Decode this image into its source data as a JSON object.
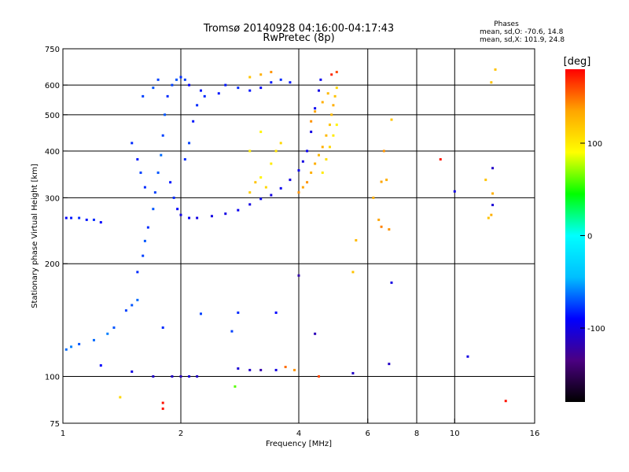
{
  "chart_data": {
    "type": "scatter",
    "title": "Tromsø 20140928 04:16:00-04:17:43",
    "subtitle": "RwPretec (8p)",
    "xlabel": "Frequency [MHz]",
    "ylabel": "Stationary phase Virtual Height [km]",
    "x_scale": "log",
    "y_scale": "log",
    "xlim": [
      1,
      16
    ],
    "ylim": [
      75,
      750
    ],
    "x_ticks": [
      1,
      2,
      4,
      6,
      8,
      10,
      16
    ],
    "x_tick_labels": [
      "1",
      "2",
      "4",
      "6",
      "8",
      "10",
      "16"
    ],
    "y_ticks": [
      75,
      100,
      200,
      300,
      400,
      500,
      600,
      750
    ],
    "y_tick_labels": [
      "75",
      "100",
      "200",
      "300",
      "400",
      "500",
      "600",
      "750"
    ],
    "grid": true,
    "phase_box": {
      "title": "Phases",
      "line_o": "mean, sd,O: -70.6, 14.8",
      "line_x": "mean, sd,X: 101.9, 24.8"
    },
    "colorbar": {
      "label": "[deg]",
      "min": -180,
      "max": 180,
      "ticks": [
        100,
        0,
        -100
      ],
      "tick_labels": [
        "100",
        "0",
        "-100"
      ],
      "colors": [
        "#000000",
        "#4b0082",
        "#0000ff",
        "#00bfff",
        "#00ffff",
        "#00ff00",
        "#ffff00",
        "#ffa500",
        "#ff0000"
      ]
    },
    "series": [
      {
        "points": [
          [
            1.02,
            265,
            -90
          ],
          [
            1.05,
            265,
            -85
          ],
          [
            1.1,
            265,
            -80
          ],
          [
            1.15,
            262,
            -85
          ],
          [
            1.2,
            262,
            -80
          ],
          [
            1.25,
            258,
            -90
          ],
          [
            1.02,
            118,
            -65
          ],
          [
            1.05,
            120,
            -60
          ],
          [
            1.1,
            122,
            -70
          ],
          [
            1.2,
            125,
            -65
          ],
          [
            1.3,
            130,
            -60
          ],
          [
            1.35,
            135,
            -70
          ],
          [
            1.45,
            150,
            -75
          ],
          [
            1.5,
            155,
            -70
          ],
          [
            1.55,
            160,
            -65
          ],
          [
            1.55,
            190,
            -80
          ],
          [
            1.6,
            210,
            -75
          ],
          [
            1.62,
            230,
            -70
          ],
          [
            1.65,
            250,
            -80
          ],
          [
            1.7,
            280,
            -70
          ],
          [
            1.72,
            310,
            -75
          ],
          [
            1.75,
            350,
            -70
          ],
          [
            1.78,
            390,
            -65
          ],
          [
            1.8,
            440,
            -75
          ],
          [
            1.82,
            500,
            -70
          ],
          [
            1.85,
            560,
            -80
          ],
          [
            1.9,
            600,
            -75
          ],
          [
            1.95,
            620,
            -70
          ],
          [
            2.0,
            630,
            -80
          ],
          [
            2.05,
            620,
            -75
          ],
          [
            2.1,
            600,
            -90
          ],
          [
            1.88,
            330,
            -85
          ],
          [
            1.92,
            300,
            -80
          ],
          [
            1.96,
            280,
            -90
          ],
          [
            2.0,
            270,
            -100
          ],
          [
            2.1,
            265,
            -95
          ],
          [
            2.2,
            265,
            -100
          ],
          [
            2.4,
            268,
            -100
          ],
          [
            2.6,
            272,
            -100
          ],
          [
            2.8,
            278,
            -95
          ],
          [
            3.0,
            288,
            -100
          ],
          [
            3.2,
            298,
            -95
          ],
          [
            3.4,
            305,
            -100
          ],
          [
            3.6,
            318,
            -95
          ],
          [
            3.8,
            335,
            -100
          ],
          [
            4.0,
            355,
            -95
          ],
          [
            4.1,
            375,
            -100
          ],
          [
            4.2,
            400,
            -95
          ],
          [
            4.3,
            450,
            -100
          ],
          [
            4.4,
            520,
            -95
          ],
          [
            4.5,
            580,
            -100
          ],
          [
            4.55,
            620,
            -95
          ],
          [
            2.6,
            600,
            -85
          ],
          [
            2.8,
            590,
            -80
          ],
          [
            3.0,
            580,
            -85
          ],
          [
            3.2,
            590,
            -90
          ],
          [
            3.4,
            610,
            -85
          ],
          [
            3.6,
            620,
            -80
          ],
          [
            3.8,
            610,
            -85
          ],
          [
            2.3,
            560,
            -80
          ],
          [
            2.5,
            570,
            -85
          ],
          [
            1.6,
            560,
            -75
          ],
          [
            1.7,
            590,
            -70
          ],
          [
            1.75,
            620,
            -75
          ],
          [
            1.5,
            420,
            -80
          ],
          [
            1.55,
            380,
            -85
          ],
          [
            1.58,
            350,
            -75
          ],
          [
            1.62,
            320,
            -80
          ],
          [
            2.05,
            380,
            -80
          ],
          [
            2.1,
            420,
            -75
          ],
          [
            2.15,
            480,
            -85
          ],
          [
            2.2,
            530,
            -80
          ],
          [
            2.25,
            580,
            -85
          ],
          [
            1.25,
            107,
            -90
          ],
          [
            1.5,
            103,
            -100
          ],
          [
            1.7,
            100,
            -110
          ],
          [
            1.9,
            100,
            -110
          ],
          [
            2.0,
            100,
            -115
          ],
          [
            2.2,
            100,
            -110
          ],
          [
            2.8,
            105,
            -105
          ],
          [
            3.0,
            104,
            -110
          ],
          [
            3.2,
            104,
            -120
          ],
          [
            3.5,
            104,
            -100
          ],
          [
            3.7,
            106,
            150
          ],
          [
            3.9,
            104,
            140
          ],
          [
            4.5,
            100,
            160
          ],
          [
            5.5,
            102,
            -110
          ],
          [
            6.8,
            108,
            -110
          ],
          [
            6.9,
            178,
            -100
          ],
          [
            4.0,
            186,
            -120
          ],
          [
            12.5,
            360,
            -110
          ],
          [
            12.5,
            287,
            -105
          ],
          [
            10,
            312,
            -100
          ],
          [
            9.2,
            380,
            175
          ],
          [
            10.8,
            113,
            -100
          ],
          [
            12.5,
            308,
            130
          ],
          [
            12.0,
            335,
            120
          ],
          [
            4.4,
            130,
            -115
          ],
          [
            1.8,
            135,
            -80
          ],
          [
            2.7,
            132,
            -75
          ],
          [
            2.1,
            100,
            -105
          ],
          [
            3.3,
            320,
            110
          ],
          [
            3.1,
            330,
            120
          ],
          [
            3.0,
            310,
            115
          ],
          [
            3.2,
            340,
            95
          ],
          [
            3.4,
            370,
            100
          ],
          [
            3.5,
            400,
            105
          ],
          [
            3.6,
            420,
            110
          ],
          [
            3.0,
            400,
            100
          ],
          [
            3.2,
            450,
            95
          ],
          [
            4.0,
            310,
            140
          ],
          [
            4.1,
            320,
            135
          ],
          [
            4.2,
            330,
            140
          ],
          [
            4.3,
            350,
            130
          ],
          [
            4.4,
            370,
            130
          ],
          [
            4.5,
            390,
            125
          ],
          [
            4.6,
            410,
            130
          ],
          [
            4.7,
            440,
            125
          ],
          [
            4.8,
            470,
            120
          ],
          [
            4.85,
            500,
            125
          ],
          [
            4.9,
            530,
            130
          ],
          [
            4.95,
            560,
            120
          ],
          [
            5.0,
            590,
            110
          ],
          [
            4.6,
            350,
            100
          ],
          [
            4.7,
            380,
            105
          ],
          [
            4.8,
            410,
            110
          ],
          [
            4.9,
            440,
            100
          ],
          [
            5.0,
            470,
            95
          ],
          [
            4.3,
            480,
            140
          ],
          [
            4.4,
            510,
            135
          ],
          [
            4.6,
            540,
            130
          ],
          [
            4.75,
            570,
            125
          ],
          [
            4.85,
            640,
            170
          ],
          [
            5.0,
            650,
            160
          ],
          [
            3.2,
            640,
            130
          ],
          [
            3.4,
            650,
            140
          ],
          [
            3.0,
            630,
            120
          ],
          [
            5.5,
            190,
            120
          ],
          [
            5.6,
            231,
            125
          ],
          [
            6.4,
            262,
            135
          ],
          [
            6.5,
            251,
            145
          ],
          [
            6.8,
            247,
            140
          ],
          [
            6.6,
            400,
            140
          ],
          [
            6.5,
            331,
            135
          ],
          [
            12.4,
            270,
            130
          ],
          [
            12.2,
            265,
            120
          ],
          [
            12.4,
            610,
            120
          ],
          [
            12.7,
            660,
            120
          ],
          [
            13.5,
            86,
            175
          ],
          [
            1.4,
            88,
            110
          ],
          [
            1.8,
            85,
            175
          ],
          [
            1.8,
            82,
            175
          ],
          [
            2.75,
            94,
            60
          ],
          [
            2.8,
            148,
            -80
          ],
          [
            2.25,
            147,
            -75
          ],
          [
            3.5,
            148,
            -90
          ],
          [
            6.9,
            485,
            120
          ],
          [
            6.2,
            300,
            130
          ],
          [
            6.7,
            335,
            130
          ]
        ]
      }
    ]
  }
}
